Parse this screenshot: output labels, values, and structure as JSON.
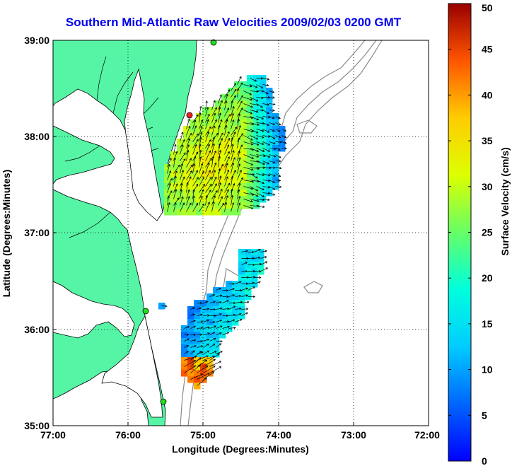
{
  "title": "Southern Mid-Atlantic Raw Velocities 2009/02/03 0200 GMT",
  "map": {
    "xlabel": "Longitude (Degrees:Minutes)",
    "ylabel": "Latitude (Degrees:Minutes)",
    "lon_ticks": [
      "77:00",
      "76:00",
      "75:00",
      "74:00",
      "73:00",
      "72:00"
    ],
    "lat_ticks": [
      "39:00",
      "38:00",
      "37:00",
      "36:00",
      "35:00"
    ],
    "lon_range": [
      -77,
      -72
    ],
    "lat_range": [
      35,
      39
    ],
    "grid": "dotted",
    "colors": {
      "land": "#55f5a5",
      "coast": "#000000",
      "bathymetry": "#8a8a8a",
      "site_markers": "#22dd22",
      "site_active": "#ee2222"
    }
  },
  "colorbar": {
    "label": "Surface Velocity (cm/s)",
    "ticks": [
      "0",
      "5",
      "10",
      "15",
      "20",
      "25",
      "30",
      "35",
      "40",
      "45",
      "50"
    ],
    "range": [
      0,
      50
    ],
    "colormap": "jet"
  }
}
